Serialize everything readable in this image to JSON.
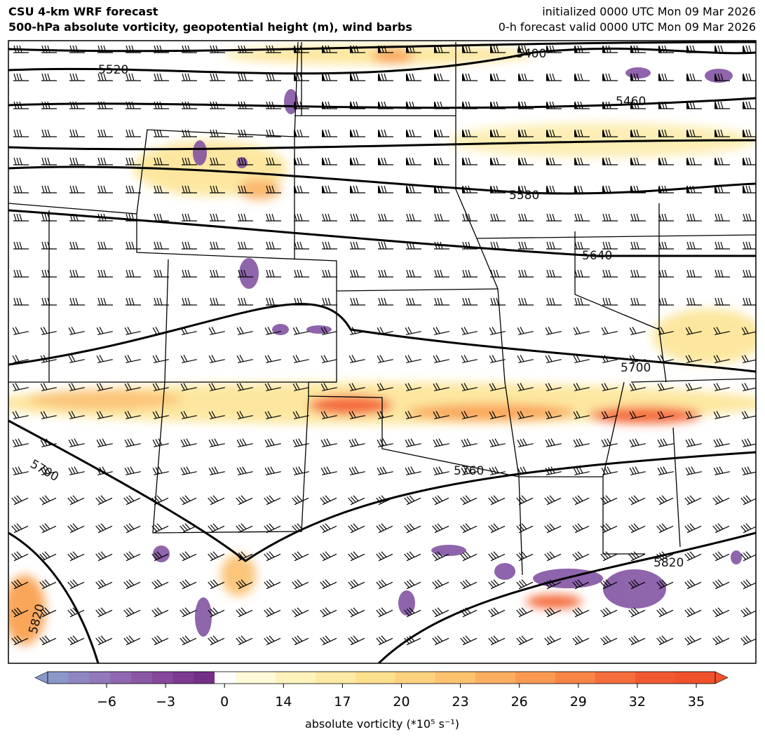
{
  "header": {
    "title": "CSU 4-km WRF forecast",
    "subtitle": "500-hPa absolute vorticity, geopotential height (m), wind barbs",
    "init": "initialized 0000 UTC Mon 09 Mar 2026",
    "valid": "0-h forecast valid 0000 UTC Mon 09 Mar 2026"
  },
  "map": {
    "contour_labels": [
      "5520",
      "5400",
      "5460",
      "5580",
      "5640",
      "5700",
      "5700",
      "5760",
      "5820",
      "5820"
    ]
  },
  "colorbar": {
    "ticks": [
      "−6",
      "−3",
      "0",
      "14",
      "17",
      "20",
      "23",
      "26",
      "29",
      "32",
      "35"
    ],
    "label": "absolute vorticity (*10⁵ s⁻¹)"
  }
}
